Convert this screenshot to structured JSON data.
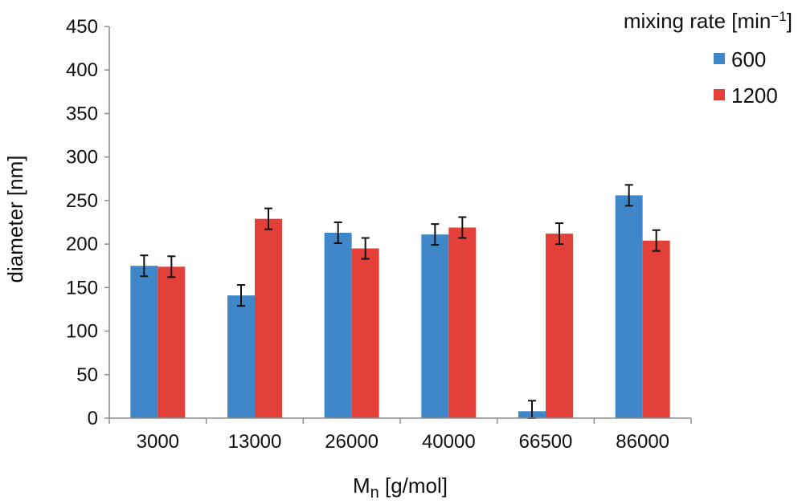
{
  "chart_data": {
    "type": "bar",
    "categories": [
      "3000",
      "13000",
      "26000",
      "40000",
      "66500",
      "86000"
    ],
    "series": [
      {
        "name": "600",
        "color": "#3f87c9",
        "values": [
          175,
          141,
          213,
          211,
          8,
          256
        ],
        "errors": [
          12,
          12,
          12,
          12,
          12,
          12
        ]
      },
      {
        "name": "1200",
        "color": "#e3403a",
        "values": [
          174,
          229,
          195,
          219,
          212,
          204
        ],
        "errors": [
          12,
          12,
          12,
          12,
          12,
          12
        ]
      }
    ],
    "ylim": [
      0,
      450
    ],
    "yticks": [
      0,
      50,
      100,
      150,
      200,
      250,
      300,
      350,
      400,
      450
    ],
    "xlabel_main": "M",
    "xlabel_sub": "n",
    "xlabel_rest": " [g/mol]",
    "ylabel": "diameter [nm]",
    "legend": {
      "title_main": "mixing rate [min",
      "title_sup": "−1",
      "title_end": "]",
      "position": "top-right"
    },
    "grid": false
  }
}
